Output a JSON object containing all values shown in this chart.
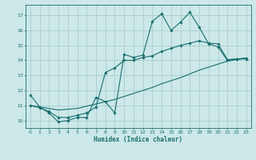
{
  "bg_color": "#cce8e8",
  "grid_color": "#aacccc",
  "line_color": "#1a6e6e",
  "xlabel": "Humidex (Indice chaleur)",
  "xlim": [
    -0.5,
    23.5
  ],
  "ylim": [
    9.5,
    17.7
  ],
  "xticks": [
    0,
    1,
    2,
    3,
    4,
    5,
    6,
    7,
    8,
    9,
    10,
    11,
    12,
    13,
    14,
    15,
    16,
    17,
    18,
    19,
    20,
    21,
    22,
    23
  ],
  "yticks": [
    10,
    11,
    12,
    13,
    14,
    15,
    16,
    17
  ],
  "line1_x": [
    0,
    1,
    2,
    3,
    4,
    5,
    6,
    7,
    8,
    9,
    10,
    11,
    12,
    13,
    14,
    15,
    16,
    17,
    18,
    19,
    20,
    21,
    22,
    23
  ],
  "line1_y": [
    11.7,
    10.9,
    10.5,
    9.9,
    10.0,
    10.2,
    10.2,
    11.55,
    11.25,
    10.5,
    14.4,
    14.2,
    14.35,
    16.6,
    17.1,
    16.0,
    16.55,
    17.2,
    16.2,
    15.1,
    14.9,
    14.0,
    14.1,
    14.1
  ],
  "line2_x": [
    0,
    1,
    2,
    3,
    4,
    5,
    6,
    7,
    8,
    9,
    10,
    11,
    12,
    13,
    14,
    15,
    16,
    17,
    18,
    19,
    20,
    21,
    22,
    23
  ],
  "line2_y": [
    11.0,
    10.85,
    10.6,
    10.2,
    10.2,
    10.35,
    10.5,
    10.9,
    13.2,
    13.5,
    14.0,
    14.0,
    14.2,
    14.3,
    14.6,
    14.8,
    15.0,
    15.15,
    15.3,
    15.15,
    15.1,
    14.05,
    14.1,
    14.15
  ],
  "line3_x": [
    0,
    1,
    2,
    3,
    4,
    5,
    6,
    7,
    8,
    9,
    10,
    11,
    12,
    13,
    14,
    15,
    16,
    17,
    18,
    19,
    20,
    21,
    22,
    23
  ],
  "line3_y": [
    11.0,
    10.9,
    10.8,
    10.7,
    10.75,
    10.8,
    10.95,
    11.1,
    11.25,
    11.4,
    11.6,
    11.8,
    12.0,
    12.2,
    12.45,
    12.65,
    12.85,
    13.1,
    13.35,
    13.55,
    13.75,
    13.95,
    14.05,
    14.15
  ],
  "tick_fontsize": 4.5,
  "xlabel_fontsize": 5.5,
  "lw": 0.8,
  "ms": 1.8
}
